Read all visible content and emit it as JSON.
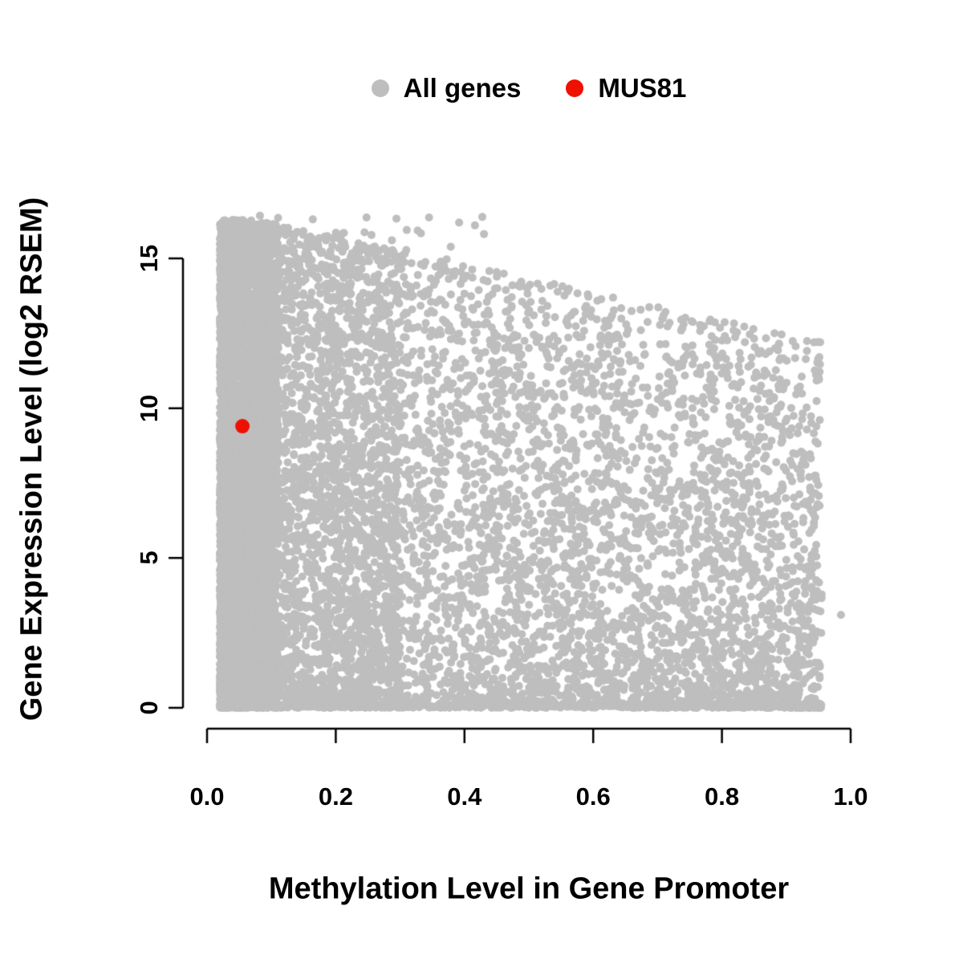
{
  "legend": {
    "position": "top-center",
    "items": [
      {
        "label": "All genes",
        "color": "#bebebe"
      },
      {
        "label": "MUS81",
        "color": "#ee1100"
      }
    ]
  },
  "axes": {
    "x": {
      "label": "Methylation Level in Gene Promoter",
      "ticks": [
        "0.0",
        "0.2",
        "0.4",
        "0.6",
        "0.8",
        "1.0"
      ],
      "tick_values": [
        0,
        0.2,
        0.4,
        0.6,
        0.8,
        1.0
      ],
      "range": [
        0,
        1.0
      ]
    },
    "y": {
      "label": "Gene Expression Level (log2 RSEM)",
      "ticks": [
        "0",
        "5",
        "10",
        "15"
      ],
      "tick_values": [
        0,
        5,
        10,
        15
      ],
      "range": [
        0,
        15
      ]
    }
  },
  "colors": {
    "points": "#bebebe",
    "highlight": "#ee1100",
    "axis": "#000000",
    "background": "#ffffff"
  },
  "chart_data": {
    "type": "scatter",
    "title": "",
    "xlabel": "Methylation Level in Gene Promoter",
    "ylabel": "Gene Expression Level (log2 RSEM)",
    "xlim": [
      0,
      1.0
    ],
    "ylim": [
      0,
      16.6
    ],
    "grid": false,
    "legend_position": "top",
    "series": [
      {
        "name": "All genes",
        "color": "#bebebe",
        "marker": "filled-circle",
        "marker_radius_px": 5,
        "n_points_approx": 12000,
        "distribution": {
          "x_range": [
            0.02,
            0.955
          ],
          "y_range": [
            0,
            16.55
          ],
          "description": "Very dense point cloud; densest vertical band at methylation 0.02-0.12 spanning expression 0-16.5; upper expression envelope declines from ~16.4 at x=0.05 to ~12 at x=0.95; dense row of points at expression 0 across full methylation range.",
          "generator": {
            "seed": 42,
            "n": 12000,
            "baseline_fraction": 0.06,
            "n_top_outliers": 50
          }
        },
        "extra_points": [
          [
            0.985,
            3.1
          ]
        ]
      },
      {
        "name": "MUS81",
        "color": "#ee1100",
        "marker": "filled-circle",
        "marker_radius_px": 9,
        "points": [
          [
            0.055,
            9.4
          ]
        ]
      }
    ]
  }
}
